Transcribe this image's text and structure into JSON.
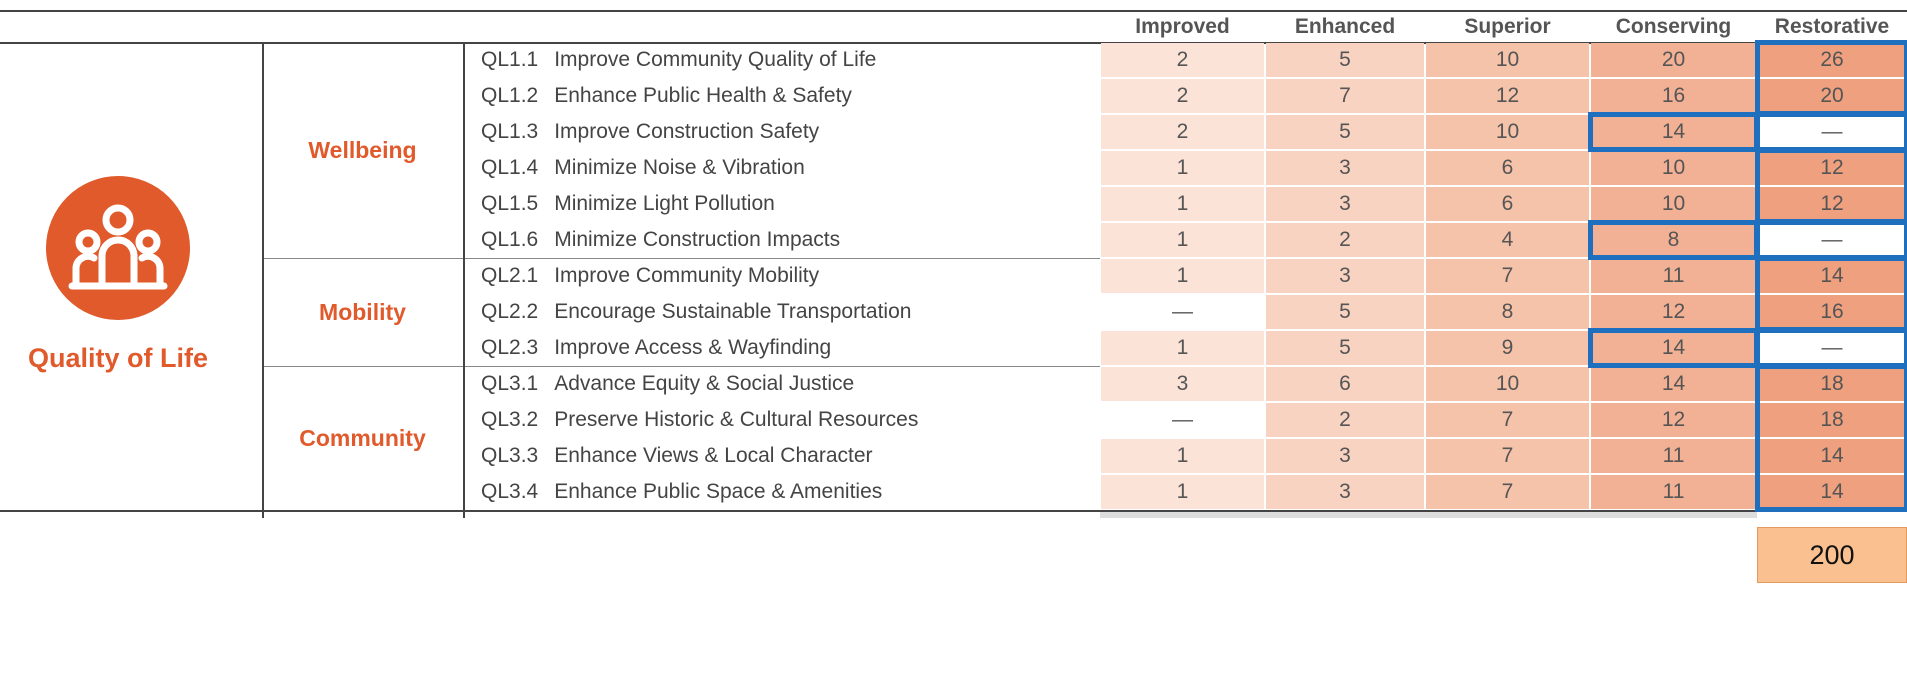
{
  "title": "Quality of Life",
  "columns": [
    "Improved",
    "Enhanced",
    "Superior",
    "Conserving",
    "Restorative"
  ],
  "groups": [
    {
      "name": "Wellbeing",
      "rows": [
        {
          "code": "QL1.1",
          "name": "Improve Community Quality of Life",
          "values": [
            2,
            5,
            10,
            20,
            26
          ]
        },
        {
          "code": "QL1.2",
          "name": "Enhance Public Health & Safety",
          "values": [
            2,
            7,
            12,
            16,
            20
          ]
        },
        {
          "code": "QL1.3",
          "name": "Improve Construction Safety",
          "values": [
            2,
            5,
            10,
            14,
            "—"
          ]
        },
        {
          "code": "QL1.4",
          "name": "Minimize Noise & Vibration",
          "values": [
            1,
            3,
            6,
            10,
            12
          ]
        },
        {
          "code": "QL1.5",
          "name": "Minimize Light Pollution",
          "values": [
            1,
            3,
            6,
            10,
            12
          ]
        },
        {
          "code": "QL1.6",
          "name": "Minimize Construction Impacts",
          "values": [
            1,
            2,
            4,
            8,
            "—"
          ]
        }
      ]
    },
    {
      "name": "Mobility",
      "rows": [
        {
          "code": "QL2.1",
          "name": "Improve Community Mobility",
          "values": [
            1,
            3,
            7,
            11,
            14
          ]
        },
        {
          "code": "QL2.2",
          "name": "Encourage Sustainable Transportation",
          "values": [
            "—",
            5,
            8,
            12,
            16
          ]
        },
        {
          "code": "QL2.3",
          "name": "Improve Access & Wayfinding",
          "values": [
            1,
            5,
            9,
            14,
            "—"
          ]
        }
      ]
    },
    {
      "name": "Community",
      "rows": [
        {
          "code": "QL3.1",
          "name": "Advance Equity & Social Justice",
          "values": [
            3,
            6,
            10,
            14,
            18
          ]
        },
        {
          "code": "QL3.2",
          "name": "Preserve Historic & Cultural Resources",
          "values": [
            "—",
            2,
            7,
            12,
            18
          ]
        },
        {
          "code": "QL3.3",
          "name": "Enhance Views & Local Character",
          "values": [
            1,
            3,
            7,
            11,
            14
          ]
        },
        {
          "code": "QL3.4",
          "name": "Enhance Public Space & Amenities",
          "values": [
            1,
            3,
            7,
            11,
            14
          ]
        }
      ]
    }
  ],
  "total": 200
}
